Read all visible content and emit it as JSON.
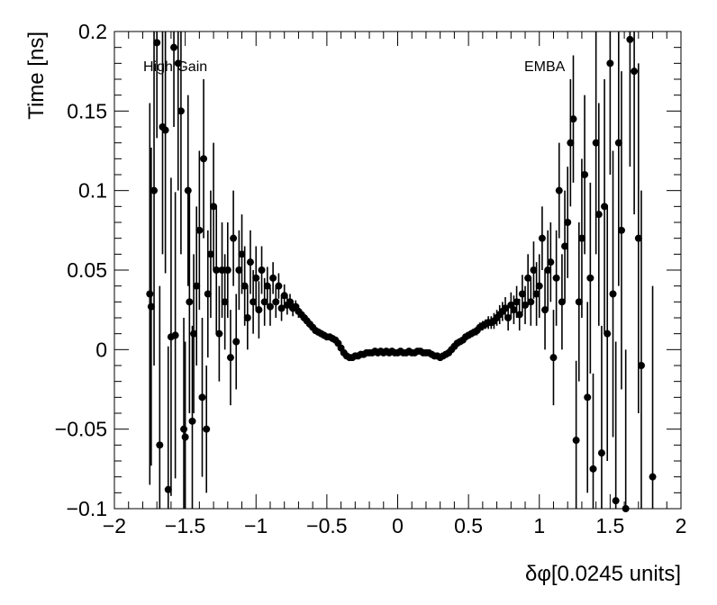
{
  "chart_data": {
    "type": "scatter",
    "xlabel": "δφ[0.0245 units]",
    "ylabel": "Time [ns]",
    "xlim": [
      -2,
      2
    ],
    "ylim": [
      -0.1,
      0.2
    ],
    "x_ticks": [
      -2,
      -1.5,
      -1,
      -0.5,
      0,
      0.5,
      1,
      1.5,
      2
    ],
    "x_tick_labels": [
      "−2",
      "−1.5",
      "−1",
      "−0.5",
      "0",
      "0.5",
      "1",
      "1.5",
      "2"
    ],
    "y_ticks": [
      -0.1,
      -0.05,
      0,
      0.05,
      0.1,
      0.15,
      0.2
    ],
    "y_tick_labels": [
      "−0.1",
      "−0.05",
      "0",
      "0.05",
      "0.1",
      "0.15",
      "0.2"
    ],
    "annotations": {
      "left": "High Gain",
      "right": "EMBA"
    },
    "grid": false,
    "marker_color": "#000000",
    "series": [
      {
        "points": [
          {
            "x": -1.75,
            "y": 0.035,
            "err": 0.12
          },
          {
            "x": -1.74,
            "y": 0.027,
            "err": 0.1
          },
          {
            "x": -1.72,
            "y": 0.1,
            "err": 0.11
          },
          {
            "x": -1.7,
            "y": 0.193,
            "err": 0.06
          },
          {
            "x": -1.68,
            "y": -0.06,
            "err": 0.1
          },
          {
            "x": -1.66,
            "y": 0.14,
            "err": 0.08
          },
          {
            "x": -1.64,
            "y": 0.138,
            "err": 0.09
          },
          {
            "x": -1.62,
            "y": -0.088,
            "err": 0.09
          },
          {
            "x": -1.6,
            "y": 0.008,
            "err": 0.1
          },
          {
            "x": -1.58,
            "y": 0.19,
            "err": 0.05
          },
          {
            "x": -1.57,
            "y": 0.009,
            "err": 0.09
          },
          {
            "x": -1.55,
            "y": 0.18,
            "err": 0.08
          },
          {
            "x": -1.53,
            "y": 0.15,
            "err": 0.09
          },
          {
            "x": -1.51,
            "y": -0.05,
            "err": 0.07
          },
          {
            "x": -1.5,
            "y": -0.055,
            "err": 0.06
          },
          {
            "x": -1.48,
            "y": 0.1,
            "err": 0.06
          },
          {
            "x": -1.47,
            "y": 0.03,
            "err": 0.07
          },
          {
            "x": -1.45,
            "y": -0.045,
            "err": 0.06
          },
          {
            "x": -1.44,
            "y": 0.01,
            "err": 0.05
          },
          {
            "x": -1.42,
            "y": 0.04,
            "err": 0.05
          },
          {
            "x": -1.4,
            "y": 0.075,
            "err": 0.05
          },
          {
            "x": -1.38,
            "y": -0.03,
            "err": 0.05
          },
          {
            "x": -1.37,
            "y": 0.12,
            "err": 0.05
          },
          {
            "x": -1.35,
            "y": -0.05,
            "err": 0.04
          },
          {
            "x": -1.34,
            "y": 0.035,
            "err": 0.04
          },
          {
            "x": -1.32,
            "y": 0.06,
            "err": 0.04
          },
          {
            "x": -1.3,
            "y": 0.09,
            "err": 0.04
          },
          {
            "x": -1.28,
            "y": 0.05,
            "err": 0.04
          },
          {
            "x": -1.26,
            "y": 0.01,
            "err": 0.03
          },
          {
            "x": -1.24,
            "y": 0.05,
            "err": 0.03
          },
          {
            "x": -1.22,
            "y": 0.03,
            "err": 0.03
          },
          {
            "x": -1.2,
            "y": 0.05,
            "err": 0.03
          },
          {
            "x": -1.18,
            "y": -0.005,
            "err": 0.03
          },
          {
            "x": -1.16,
            "y": 0.07,
            "err": 0.03
          },
          {
            "x": -1.14,
            "y": 0.005,
            "err": 0.03
          },
          {
            "x": -1.12,
            "y": 0.05,
            "err": 0.025
          },
          {
            "x": -1.1,
            "y": 0.06,
            "err": 0.025
          },
          {
            "x": -1.08,
            "y": 0.04,
            "err": 0.025
          },
          {
            "x": -1.06,
            "y": 0.02,
            "err": 0.02
          },
          {
            "x": -1.04,
            "y": 0.055,
            "err": 0.02
          },
          {
            "x": -1.02,
            "y": 0.03,
            "err": 0.02
          },
          {
            "x": -1.0,
            "y": 0.045,
            "err": 0.02
          },
          {
            "x": -0.98,
            "y": 0.025,
            "err": 0.018
          },
          {
            "x": -0.96,
            "y": 0.05,
            "err": 0.015
          },
          {
            "x": -0.94,
            "y": 0.03,
            "err": 0.015
          },
          {
            "x": -0.92,
            "y": 0.04,
            "err": 0.012
          },
          {
            "x": -0.9,
            "y": 0.027,
            "err": 0.012
          },
          {
            "x": -0.88,
            "y": 0.045,
            "err": 0.01
          },
          {
            "x": -0.86,
            "y": 0.03,
            "err": 0.01
          },
          {
            "x": -0.84,
            "y": 0.04,
            "err": 0.008
          },
          {
            "x": -0.82,
            "y": 0.026,
            "err": 0.008
          },
          {
            "x": -0.8,
            "y": 0.034,
            "err": 0.007
          },
          {
            "x": -0.78,
            "y": 0.028,
            "err": 0.006
          },
          {
            "x": -0.76,
            "y": 0.03,
            "err": 0.005
          },
          {
            "x": -0.74,
            "y": 0.026,
            "err": 0.005
          },
          {
            "x": -0.72,
            "y": 0.027,
            "err": 0.004
          },
          {
            "x": -0.7,
            "y": 0.024,
            "err": 0.004
          },
          {
            "x": -0.68,
            "y": 0.022,
            "err": 0.003
          },
          {
            "x": -0.66,
            "y": 0.02,
            "err": 0.003
          },
          {
            "x": -0.64,
            "y": 0.018,
            "err": 0.003
          },
          {
            "x": -0.62,
            "y": 0.016,
            "err": 0.002
          },
          {
            "x": -0.6,
            "y": 0.014,
            "err": 0.002
          },
          {
            "x": -0.58,
            "y": 0.012,
            "err": 0.002
          },
          {
            "x": -0.56,
            "y": 0.011,
            "err": 0.002
          },
          {
            "x": -0.54,
            "y": 0.01,
            "err": 0.002
          },
          {
            "x": -0.52,
            "y": 0.009,
            "err": 0.002
          },
          {
            "x": -0.5,
            "y": 0.008,
            "err": 0.002
          },
          {
            "x": -0.48,
            "y": 0.008,
            "err": 0.002
          },
          {
            "x": -0.46,
            "y": 0.007,
            "err": 0.002
          },
          {
            "x": -0.44,
            "y": 0.006,
            "err": 0.002
          },
          {
            "x": -0.42,
            "y": 0.004,
            "err": 0.002
          },
          {
            "x": -0.4,
            "y": 0.001,
            "err": 0.002
          },
          {
            "x": -0.38,
            "y": -0.002,
            "err": 0.002
          },
          {
            "x": -0.36,
            "y": -0.004,
            "err": 0.002
          },
          {
            "x": -0.34,
            "y": -0.005,
            "err": 0.002
          },
          {
            "x": -0.32,
            "y": -0.005,
            "err": 0.002
          },
          {
            "x": -0.3,
            "y": -0.004,
            "err": 0.002
          },
          {
            "x": -0.28,
            "y": -0.004,
            "err": 0.002
          },
          {
            "x": -0.26,
            "y": -0.003,
            "err": 0.002
          },
          {
            "x": -0.24,
            "y": -0.003,
            "err": 0.002
          },
          {
            "x": -0.22,
            "y": -0.002,
            "err": 0.002
          },
          {
            "x": -0.2,
            "y": -0.002,
            "err": 0.002
          },
          {
            "x": -0.18,
            "y": -0.002,
            "err": 0.002
          },
          {
            "x": -0.16,
            "y": -0.001,
            "err": 0.002
          },
          {
            "x": -0.14,
            "y": -0.002,
            "err": 0.002
          },
          {
            "x": -0.12,
            "y": -0.001,
            "err": 0.002
          },
          {
            "x": -0.1,
            "y": -0.002,
            "err": 0.002
          },
          {
            "x": -0.08,
            "y": -0.001,
            "err": 0.002
          },
          {
            "x": -0.06,
            "y": -0.002,
            "err": 0.002
          },
          {
            "x": -0.04,
            "y": -0.001,
            "err": 0.002
          },
          {
            "x": -0.02,
            "y": -0.002,
            "err": 0.002
          },
          {
            "x": 0.0,
            "y": -0.002,
            "err": 0.002
          },
          {
            "x": 0.02,
            "y": -0.001,
            "err": 0.002
          },
          {
            "x": 0.04,
            "y": -0.002,
            "err": 0.002
          },
          {
            "x": 0.06,
            "y": -0.002,
            "err": 0.002
          },
          {
            "x": 0.08,
            "y": -0.001,
            "err": 0.002
          },
          {
            "x": 0.1,
            "y": -0.002,
            "err": 0.002
          },
          {
            "x": 0.12,
            "y": -0.002,
            "err": 0.002
          },
          {
            "x": 0.14,
            "y": -0.001,
            "err": 0.002
          },
          {
            "x": 0.16,
            "y": -0.001,
            "err": 0.002
          },
          {
            "x": 0.18,
            "y": -0.002,
            "err": 0.002
          },
          {
            "x": 0.2,
            "y": -0.002,
            "err": 0.002
          },
          {
            "x": 0.22,
            "y": -0.002,
            "err": 0.002
          },
          {
            "x": 0.24,
            "y": -0.003,
            "err": 0.002
          },
          {
            "x": 0.26,
            "y": -0.004,
            "err": 0.002
          },
          {
            "x": 0.28,
            "y": -0.004,
            "err": 0.002
          },
          {
            "x": 0.3,
            "y": -0.005,
            "err": 0.002
          },
          {
            "x": 0.32,
            "y": -0.004,
            "err": 0.002
          },
          {
            "x": 0.34,
            "y": -0.003,
            "err": 0.002
          },
          {
            "x": 0.36,
            "y": -0.002,
            "err": 0.002
          },
          {
            "x": 0.38,
            "y": 0.0,
            "err": 0.002
          },
          {
            "x": 0.4,
            "y": 0.002,
            "err": 0.002
          },
          {
            "x": 0.42,
            "y": 0.004,
            "err": 0.002
          },
          {
            "x": 0.44,
            "y": 0.005,
            "err": 0.002
          },
          {
            "x": 0.46,
            "y": 0.006,
            "err": 0.002
          },
          {
            "x": 0.48,
            "y": 0.008,
            "err": 0.002
          },
          {
            "x": 0.5,
            "y": 0.009,
            "err": 0.002
          },
          {
            "x": 0.52,
            "y": 0.01,
            "err": 0.002
          },
          {
            "x": 0.54,
            "y": 0.011,
            "err": 0.002
          },
          {
            "x": 0.56,
            "y": 0.012,
            "err": 0.003
          },
          {
            "x": 0.58,
            "y": 0.014,
            "err": 0.003
          },
          {
            "x": 0.6,
            "y": 0.015,
            "err": 0.003
          },
          {
            "x": 0.62,
            "y": 0.016,
            "err": 0.003
          },
          {
            "x": 0.64,
            "y": 0.017,
            "err": 0.004
          },
          {
            "x": 0.66,
            "y": 0.017,
            "err": 0.004
          },
          {
            "x": 0.68,
            "y": 0.018,
            "err": 0.005
          },
          {
            "x": 0.7,
            "y": 0.02,
            "err": 0.005
          },
          {
            "x": 0.72,
            "y": 0.022,
            "err": 0.006
          },
          {
            "x": 0.74,
            "y": 0.024,
            "err": 0.006
          },
          {
            "x": 0.76,
            "y": 0.026,
            "err": 0.007
          },
          {
            "x": 0.78,
            "y": 0.02,
            "err": 0.008
          },
          {
            "x": 0.8,
            "y": 0.028,
            "err": 0.008
          },
          {
            "x": 0.82,
            "y": 0.025,
            "err": 0.009
          },
          {
            "x": 0.84,
            "y": 0.03,
            "err": 0.01
          },
          {
            "x": 0.86,
            "y": 0.022,
            "err": 0.01
          },
          {
            "x": 0.88,
            "y": 0.035,
            "err": 0.012
          },
          {
            "x": 0.9,
            "y": 0.028,
            "err": 0.012
          },
          {
            "x": 0.92,
            "y": 0.045,
            "err": 0.015
          },
          {
            "x": 0.94,
            "y": 0.03,
            "err": 0.015
          },
          {
            "x": 0.96,
            "y": 0.05,
            "err": 0.018
          },
          {
            "x": 0.98,
            "y": 0.035,
            "err": 0.02
          },
          {
            "x": 1.0,
            "y": 0.04,
            "err": 0.02
          },
          {
            "x": 1.02,
            "y": 0.07,
            "err": 0.02
          },
          {
            "x": 1.04,
            "y": 0.025,
            "err": 0.025
          },
          {
            "x": 1.06,
            "y": 0.05,
            "err": 0.025
          },
          {
            "x": 1.08,
            "y": 0.055,
            "err": 0.025
          },
          {
            "x": 1.1,
            "y": -0.005,
            "err": 0.03
          },
          {
            "x": 1.12,
            "y": 0.045,
            "err": 0.03
          },
          {
            "x": 1.14,
            "y": 0.1,
            "err": 0.03
          },
          {
            "x": 1.16,
            "y": 0.03,
            "err": 0.03
          },
          {
            "x": 1.18,
            "y": 0.065,
            "err": 0.035
          },
          {
            "x": 1.2,
            "y": 0.08,
            "err": 0.035
          },
          {
            "x": 1.22,
            "y": 0.13,
            "err": 0.04
          },
          {
            "x": 1.24,
            "y": 0.145,
            "err": 0.04
          },
          {
            "x": 1.26,
            "y": -0.057,
            "err": 0.05
          },
          {
            "x": 1.28,
            "y": 0.03,
            "err": 0.05
          },
          {
            "x": 1.3,
            "y": 0.07,
            "err": 0.05
          },
          {
            "x": 1.32,
            "y": 0.11,
            "err": 0.05
          },
          {
            "x": 1.34,
            "y": -0.03,
            "err": 0.06
          },
          {
            "x": 1.36,
            "y": 0.045,
            "err": 0.06
          },
          {
            "x": 1.38,
            "y": -0.075,
            "err": 0.06
          },
          {
            "x": 1.4,
            "y": 0.13,
            "err": 0.07
          },
          {
            "x": 1.42,
            "y": 0.085,
            "err": 0.07
          },
          {
            "x": 1.44,
            "y": -0.065,
            "err": 0.08
          },
          {
            "x": 1.46,
            "y": 0.09,
            "err": 0.08
          },
          {
            "x": 1.48,
            "y": 0.01,
            "err": 0.08
          },
          {
            "x": 1.5,
            "y": 0.18,
            "err": 0.07
          },
          {
            "x": 1.52,
            "y": 0.035,
            "err": 0.09
          },
          {
            "x": 1.54,
            "y": -0.095,
            "err": 0.1
          },
          {
            "x": 1.56,
            "y": 0.13,
            "err": 0.09
          },
          {
            "x": 1.58,
            "y": 0.075,
            "err": 0.1
          },
          {
            "x": 1.61,
            "y": -0.1,
            "err": 0.1
          },
          {
            "x": 1.64,
            "y": 0.195,
            "err": 0.08
          },
          {
            "x": 1.67,
            "y": 0.175,
            "err": 0.09
          },
          {
            "x": 1.7,
            "y": 0.07,
            "err": 0.11
          },
          {
            "x": 1.72,
            "y": -0.01,
            "err": 0.11
          },
          {
            "x": 1.8,
            "y": -0.08,
            "err": 0.12
          }
        ]
      }
    ]
  }
}
